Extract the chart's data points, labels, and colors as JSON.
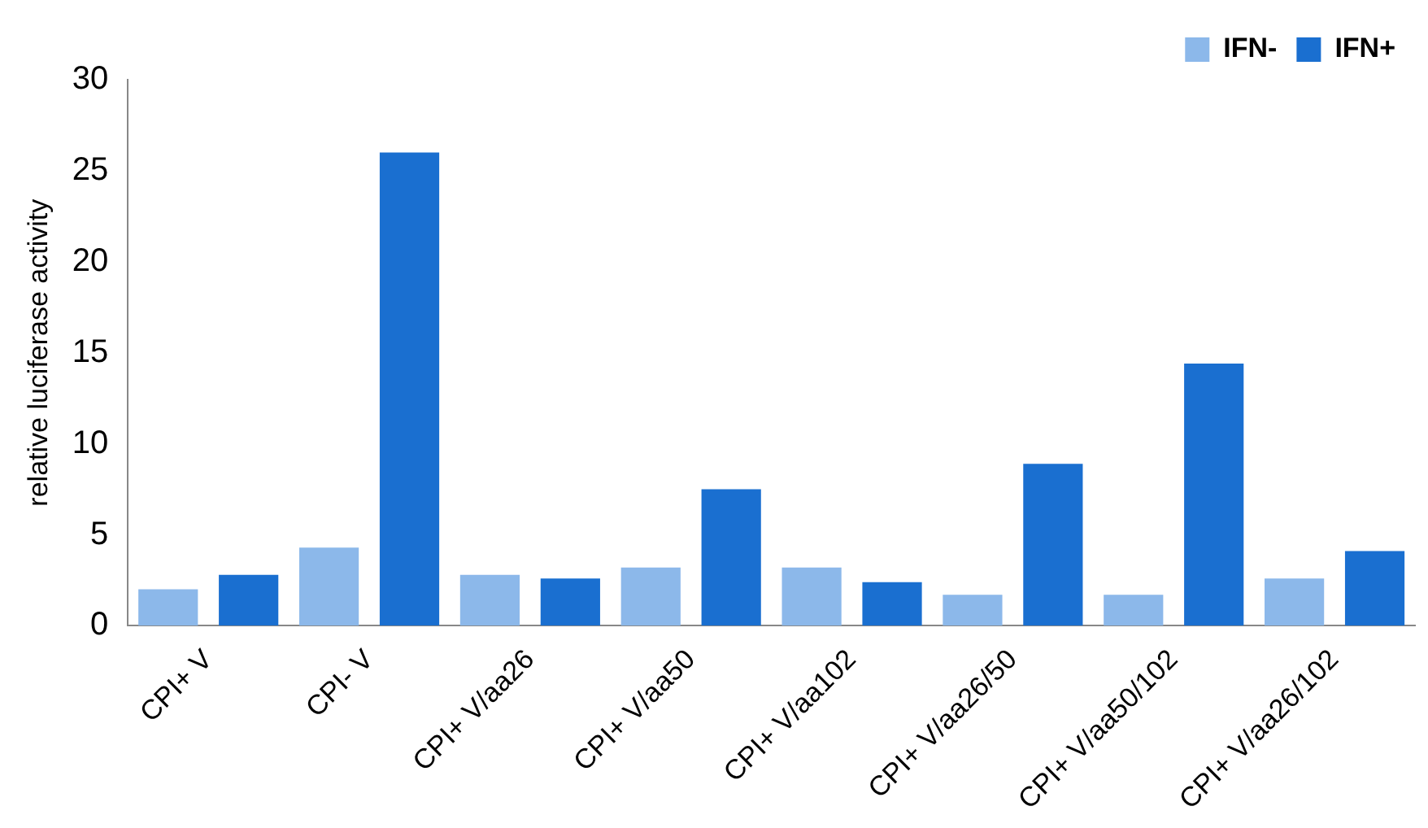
{
  "chart_data": {
    "type": "bar",
    "ylabel": "relative luciferase activity",
    "categories": [
      "CPI+ V",
      "CPI- V",
      "CPI+ V/aa26",
      "CPI+ V/aa50",
      "CPI+ V/aa102",
      "CPI+ V/aa26/50",
      "CPI+ V/aa50/102",
      "CPI+ V/aa26/102"
    ],
    "series": [
      {
        "name": "IFN-",
        "color": "#8cb8ea",
        "values": [
          2.0,
          4.3,
          2.8,
          3.2,
          3.2,
          1.7,
          1.7,
          2.6
        ]
      },
      {
        "name": "IFN+",
        "color": "#1a6fd0",
        "values": [
          2.8,
          26,
          2.6,
          7.5,
          2.4,
          8.9,
          14.4,
          4.1
        ]
      }
    ],
    "ylim": [
      0,
      30
    ],
    "yticks": [
      0,
      5,
      10,
      15,
      20,
      25,
      30
    ],
    "grid": false,
    "legend": "top right"
  }
}
